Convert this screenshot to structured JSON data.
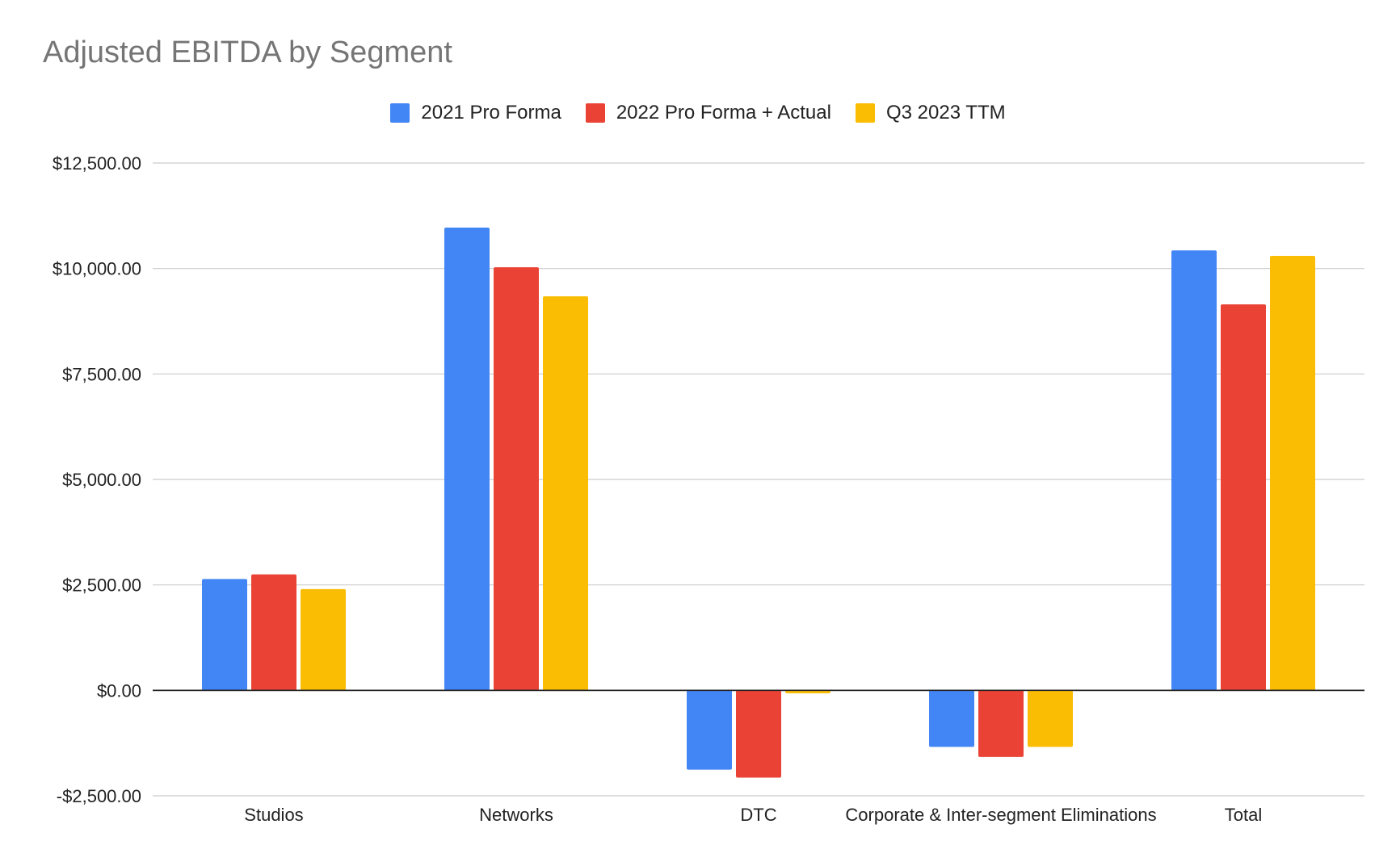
{
  "chart_data": {
    "type": "bar",
    "title": "Adjusted EBITDA by Segment",
    "xlabel": "",
    "ylabel": "",
    "categories": [
      "Studios",
      "Networks",
      "DTC",
      "Corporate & Inter-segment Eliminations",
      "Total"
    ],
    "series": [
      {
        "name": "2021 Pro Forma",
        "color": "#4285F4",
        "values": [
          2640,
          10970,
          -1880,
          -1340,
          10430
        ]
      },
      {
        "name": "2022 Pro Forma + Actual",
        "color": "#EA4335",
        "values": [
          2750,
          10030,
          -2070,
          -1580,
          9150
        ]
      },
      {
        "name": "Q3 2023 TTM",
        "color": "#FBBC04",
        "values": [
          2400,
          9340,
          -70,
          -1340,
          10300
        ]
      }
    ],
    "ylim": [
      -2500,
      12500
    ],
    "yticks": [
      -2500,
      0,
      2500,
      5000,
      7500,
      10000,
      12500
    ],
    "ytick_labels": [
      "-$2,500.00",
      "$0.00",
      "$2,500.00",
      "$5,000.00",
      "$7,500.00",
      "$10,000.00",
      "$12,500.00"
    ],
    "grid": true,
    "legend_position": "top-center"
  }
}
